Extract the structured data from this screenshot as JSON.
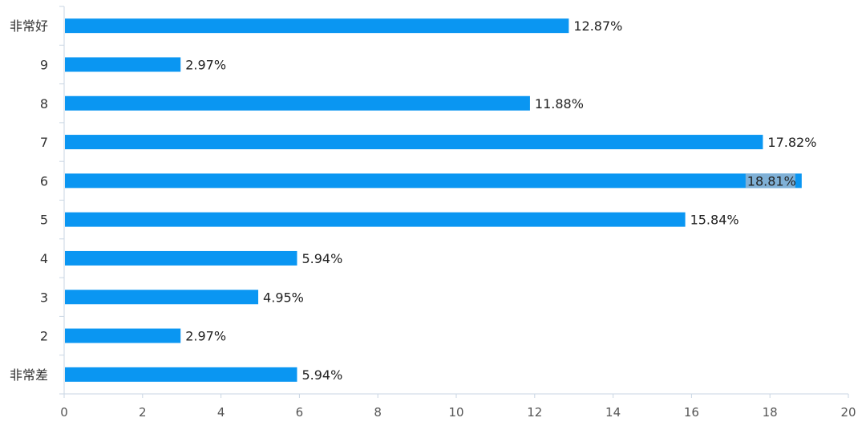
{
  "chart_data": {
    "type": "bar",
    "orientation": "horizontal",
    "categories": [
      "非常好",
      "9",
      "8",
      "7",
      "6",
      "5",
      "4",
      "3",
      "2",
      "非常差"
    ],
    "values": [
      12.87,
      2.97,
      11.88,
      17.82,
      18.81,
      15.84,
      5.94,
      4.95,
      2.97,
      5.94
    ],
    "data_labels": [
      "12.87%",
      "2.97%",
      "11.88%",
      "17.82%",
      "18.81%",
      "15.84%",
      "5.94%",
      "4.95%",
      "2.97%",
      "5.94%"
    ],
    "x_ticks": [
      "0",
      "2",
      "4",
      "6",
      "8",
      "10",
      "12",
      "14",
      "16",
      "18",
      "20"
    ],
    "xlim": [
      0,
      20
    ],
    "grid": false,
    "legend": "none",
    "bar_color": "#0a96f2",
    "highlight_label_bg": "#7fb0d6"
  }
}
